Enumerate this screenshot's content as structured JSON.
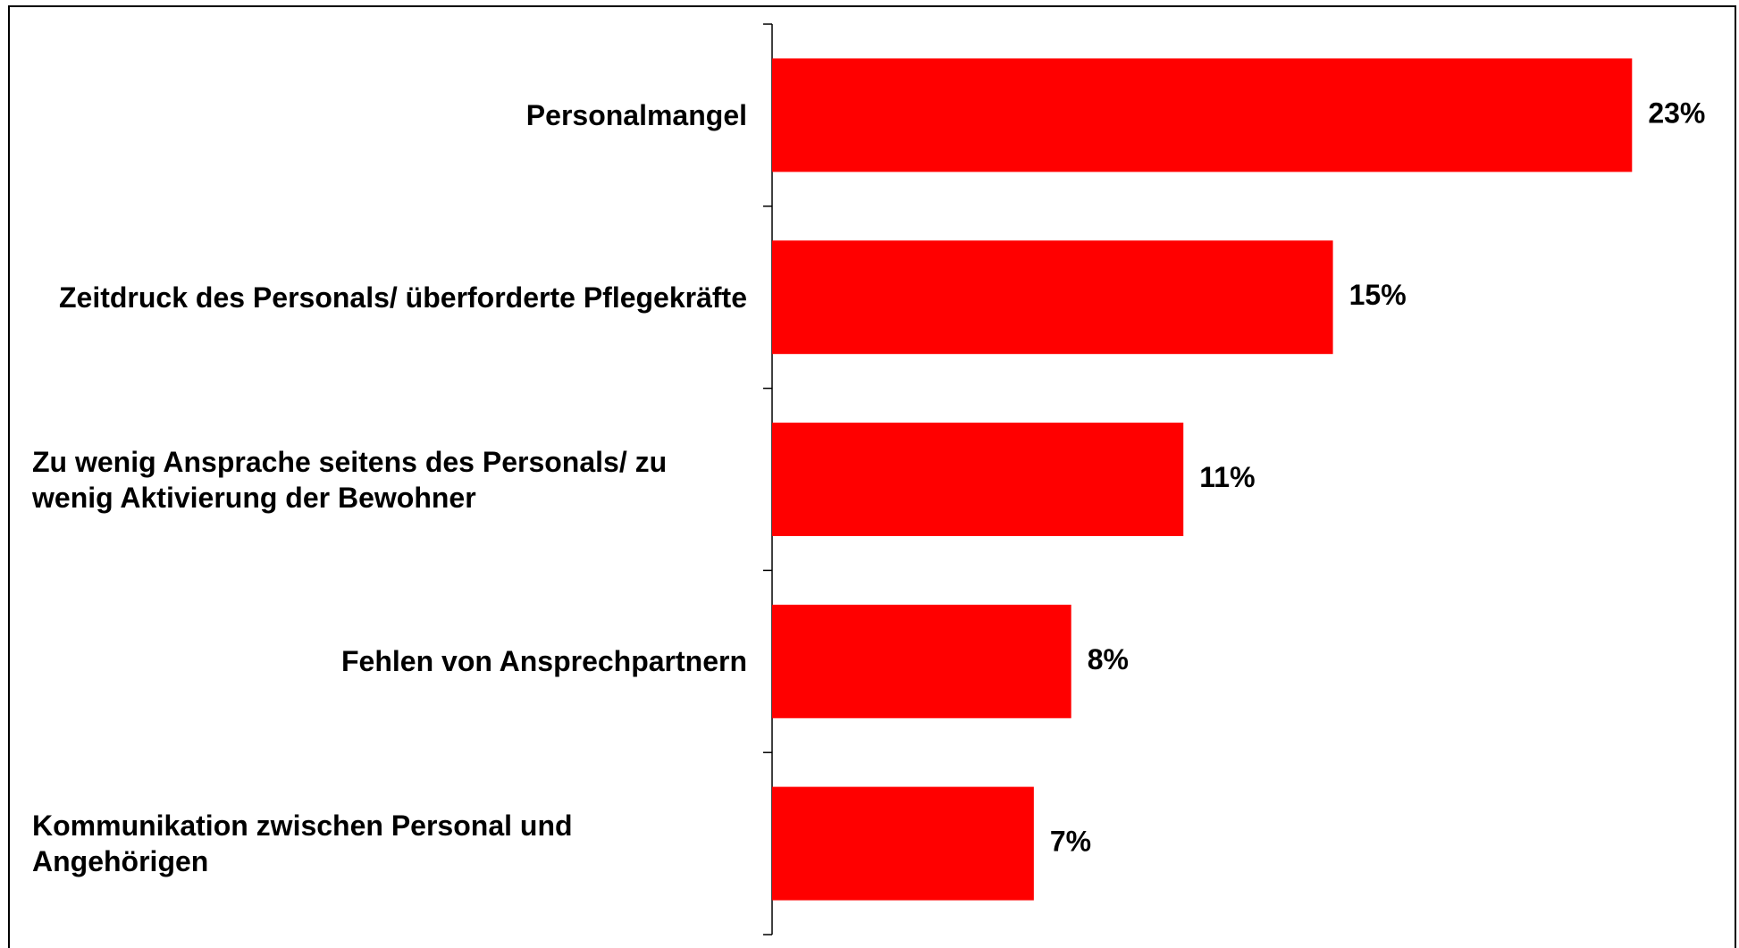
{
  "chart_data": {
    "type": "hbar",
    "categories": [
      "Personalmangel",
      "Zeitdruck des Personals/ überforderte Pflegekräfte",
      "Zu wenig Ansprache seitens des Personals/ zu wenig Aktivierung der Bewohner",
      "Fehlen von Ansprechpartnern",
      "Kommunikation zwischen Personal und Angehörigen"
    ],
    "values": [
      23,
      15,
      11,
      8,
      7
    ],
    "value_labels": [
      "23%",
      "15%",
      "11%",
      "8%",
      "7%"
    ],
    "color": "#ff0000",
    "xlim": [
      0,
      25
    ]
  }
}
